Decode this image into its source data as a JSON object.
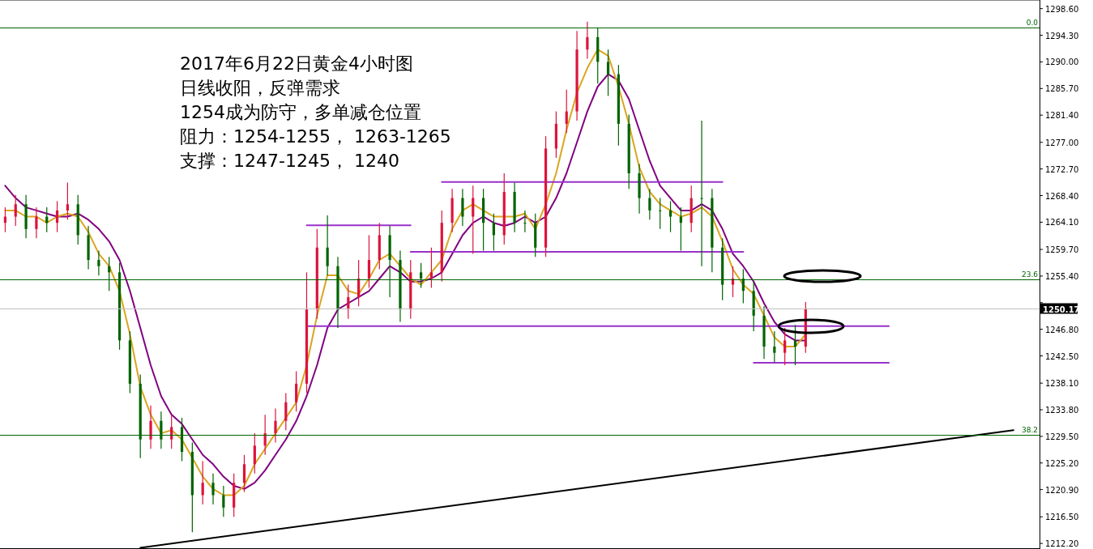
{
  "chart_data": {
    "type": "candlestick",
    "title": "2017年6月22日黄金4小时图",
    "annotations": [
      "日线收阳，反弹需求",
      "1254成为防守，多单减仓位置",
      "阻力：1254-1255， 1263-1265",
      "支撑：1247-1245， 1240",
      {
        "text": "0.0",
        "y": 1295.5
      },
      {
        "text": "23.6",
        "y": 1254.9
      },
      {
        "text": "38.2",
        "y": 1229.8
      }
    ],
    "categories": [
      null,
      null,
      null,
      null,
      null,
      null,
      null,
      null,
      null,
      null,
      null,
      null,
      null,
      null,
      null,
      null,
      null,
      null,
      null,
      null,
      null,
      null,
      null,
      null,
      null,
      null,
      null,
      null,
      null,
      null,
      null,
      null,
      null,
      null,
      null,
      null,
      null,
      null,
      null,
      null,
      null,
      null,
      null,
      null,
      null,
      null,
      null,
      null,
      null,
      null,
      null,
      null,
      null,
      null,
      null,
      null,
      null,
      null,
      null,
      null,
      null,
      null,
      null,
      null,
      null,
      null,
      null,
      null,
      null,
      null,
      null,
      null,
      null,
      null,
      null,
      null,
      null,
      null,
      null,
      null,
      null,
      null,
      null,
      null,
      null,
      null,
      null,
      null,
      null,
      null,
      null,
      null,
      null,
      null,
      null,
      null,
      null,
      null,
      null,
      null
    ],
    "ohlc": [
      [
        1264,
        1266.5,
        1262.5,
        1265
      ],
      [
        1265,
        1268.5,
        1263.5,
        1267
      ],
      [
        1267,
        1268.5,
        1261.5,
        1263
      ],
      [
        1263,
        1266.5,
        1261.5,
        1265
      ],
      [
        1265,
        1266.5,
        1262.5,
        1264
      ],
      [
        1264,
        1267.5,
        1262.5,
        1266
      ],
      [
        1266,
        1270.5,
        1264.5,
        1267
      ],
      [
        1267,
        1268.5,
        1260.5,
        1262
      ],
      [
        1262,
        1263.5,
        1256.5,
        1258
      ],
      [
        1258,
        1259.5,
        1255.5,
        1257
      ],
      [
        1257,
        1258.5,
        1253,
        1256
      ],
      [
        1256,
        1257.5,
        1243.5,
        1245
      ],
      [
        1245,
        1246.5,
        1236.5,
        1238
      ],
      [
        1238,
        1239.5,
        1226,
        1229
      ],
      [
        1229,
        1234.5,
        1227.5,
        1232
      ],
      [
        1232,
        1233.5,
        1227.5,
        1229
      ],
      [
        1229,
        1233,
        1227.5,
        1231
      ],
      [
        1231,
        1232.5,
        1225.5,
        1227
      ],
      [
        1227,
        1228.5,
        1214,
        1220
      ],
      [
        1220,
        1225.5,
        1218.5,
        1222
      ],
      [
        1222,
        1223.5,
        1218.5,
        1220
      ],
      [
        1220,
        1221.5,
        1216.5,
        1218
      ],
      [
        1218,
        1223.5,
        1216.5,
        1222
      ],
      [
        1222,
        1226.5,
        1220.5,
        1225
      ],
      [
        1225,
        1230,
        1223.5,
        1228
      ],
      [
        1228,
        1233,
        1226.5,
        1230
      ],
      [
        1230,
        1234,
        1228.5,
        1232
      ],
      [
        1232,
        1236.5,
        1230.5,
        1235
      ],
      [
        1235,
        1240,
        1233.5,
        1238
      ],
      [
        1238,
        1256,
        1236.5,
        1250
      ],
      [
        1250,
        1263,
        1248.5,
        1260
      ],
      [
        1260,
        1265.2,
        1255.5,
        1257
      ],
      [
        1257,
        1258.5,
        1247,
        1250
      ],
      [
        1250,
        1254,
        1248.5,
        1252
      ],
      [
        1252,
        1258,
        1250.5,
        1255
      ],
      [
        1255,
        1262,
        1253.5,
        1258
      ],
      [
        1258,
        1264,
        1256.5,
        1262
      ],
      [
        1262,
        1263.5,
        1252,
        1258
      ],
      [
        1258,
        1259.5,
        1248,
        1250
      ],
      [
        1250,
        1258,
        1248.5,
        1256
      ],
      [
        1256,
        1257.5,
        1253.5,
        1255
      ],
      [
        1255,
        1260,
        1253.5,
        1256
      ],
      [
        1256,
        1266,
        1254.5,
        1264
      ],
      [
        1264,
        1269.5,
        1262.5,
        1268
      ],
      [
        1268,
        1269.5,
        1263.5,
        1265
      ],
      [
        1265,
        1270,
        1259,
        1268
      ],
      [
        1268,
        1269.5,
        1259.5,
        1264
      ],
      [
        1264,
        1265.5,
        1259.5,
        1262
      ],
      [
        1262,
        1272,
        1260.5,
        1269
      ],
      [
        1269,
        1270.5,
        1262.5,
        1264
      ],
      [
        1264,
        1266,
        1262.5,
        1264
      ],
      [
        1264,
        1265.5,
        1258.5,
        1260
      ],
      [
        1260,
        1278,
        1258.5,
        1276
      ],
      [
        1276,
        1282,
        1274.5,
        1280
      ],
      [
        1280,
        1285.5,
        1278.5,
        1282
      ],
      [
        1282,
        1295,
        1280.5,
        1292
      ],
      [
        1292,
        1296.5,
        1290.5,
        1294
      ],
      [
        1294,
        1295.5,
        1286.5,
        1290
      ],
      [
        1290,
        1292,
        1284.5,
        1288
      ],
      [
        1288,
        1289.5,
        1276.5,
        1280
      ],
      [
        1280,
        1281.5,
        1269.5,
        1272
      ],
      [
        1272,
        1273.5,
        1265.5,
        1268
      ],
      [
        1268,
        1269.5,
        1264.5,
        1266
      ],
      [
        1266,
        1268,
        1263,
        1266
      ],
      [
        1266,
        1267.5,
        1262.5,
        1265
      ],
      [
        1265,
        1266.5,
        1259.5,
        1264
      ],
      [
        1264,
        1270,
        1262.5,
        1268
      ],
      [
        1268,
        1280.5,
        1257,
        1268
      ],
      [
        1268,
        1269.5,
        1256,
        1260
      ],
      [
        1260,
        1261.5,
        1251.5,
        1254
      ],
      [
        1254,
        1257,
        1252,
        1255
      ],
      [
        1255,
        1256.5,
        1251,
        1253
      ],
      [
        1253,
        1254.5,
        1246.5,
        1249
      ],
      [
        1249,
        1250.5,
        1242,
        1244
      ],
      [
        1244,
        1246.5,
        1241.5,
        1243
      ],
      [
        1243,
        1247,
        1241,
        1245
      ],
      [
        1245,
        1247.5,
        1241,
        1244
      ],
      [
        1244,
        1251.2,
        1243,
        1250.17
      ],
      null,
      null,
      null,
      null,
      null,
      null,
      null,
      null,
      null,
      null,
      null,
      null,
      null,
      null,
      null,
      null,
      null,
      null,
      null,
      null,
      null,
      null
    ],
    "colors": [
      "#dc143c",
      "#dc143c",
      "#006400",
      "#dc143c",
      "#006400",
      "#dc143c",
      "#dc143c",
      "#006400",
      "#006400",
      "#006400",
      "#006400",
      "#006400",
      "#006400",
      "#006400",
      "#dc143c",
      "#006400",
      "#dc143c",
      "#006400",
      "#006400",
      "#dc143c",
      "#006400",
      "#006400",
      "#dc143c",
      "#dc143c",
      "#dc143c",
      "#dc143c",
      "#dc143c",
      "#dc143c",
      "#dc143c",
      "#dc143c",
      "#dc143c",
      "#006400",
      "#006400",
      "#dc143c",
      "#dc143c",
      "#dc143c",
      "#dc143c",
      "#006400",
      "#006400",
      "#dc143c",
      "#006400",
      "#dc143c",
      "#dc143c",
      "#dc143c",
      "#006400",
      "#dc143c",
      "#006400",
      "#006400",
      "#dc143c",
      "#006400",
      "#006400",
      "#006400",
      "#dc143c",
      "#dc143c",
      "#dc143c",
      "#dc143c",
      "#dc143c",
      "#006400",
      "#006400",
      "#006400",
      "#006400",
      "#006400",
      "#006400",
      "#006400",
      "#006400",
      "#006400",
      "#dc143c",
      "#006400",
      "#006400",
      "#006400",
      "#dc143c",
      "#006400",
      "#006400",
      "#006400",
      "#006400",
      "#dc143c",
      "#006400",
      "#dc143c",
      null,
      null,
      null,
      null,
      null,
      null,
      null,
      null,
      null,
      null,
      null,
      null,
      null,
      null,
      null,
      null,
      null,
      null,
      null,
      null,
      null,
      null
    ],
    "series": [
      {
        "type": "line",
        "color": "#800080",
        "values": [
          1270,
          1268,
          1266.5,
          1266,
          1265.5,
          1265,
          1265,
          1265.5,
          1264.5,
          1263,
          1261,
          1258,
          1253,
          1247,
          1241,
          1236,
          1233,
          1231.5,
          1229,
          1226.5,
          1225,
          1223,
          1221.5,
          1221,
          1222,
          1224,
          1226.5,
          1229,
          1232,
          1236,
          1241,
          1247,
          1250,
          1251,
          1252,
          1253,
          1255,
          1257,
          1256,
          1254.5,
          1254.5,
          1255,
          1256,
          1259,
          1262,
          1264,
          1265,
          1264,
          1263.5,
          1264,
          1265,
          1264,
          1265,
          1268,
          1272,
          1277,
          1282,
          1286,
          1288,
          1287,
          1284,
          1279,
          1274,
          1270,
          1268,
          1266,
          1266,
          1267,
          1266,
          1263,
          1259,
          1257,
          1254.5,
          1251,
          1248,
          1246,
          1245,
          1245,
          null,
          null,
          null,
          null,
          null,
          null,
          null,
          null,
          null,
          null,
          null,
          null,
          null,
          null,
          null,
          null,
          null,
          null,
          null,
          null,
          null,
          null
        ]
      },
      {
        "type": "line",
        "color": "#daa520",
        "values": [
          1266,
          1266,
          1265,
          1265,
          1264,
          1265,
          1265.5,
          1265,
          1262.5,
          1259,
          1257,
          1253,
          1246,
          1237.5,
          1233,
          1230,
          1230.5,
          1229,
          1226,
          1223,
          1221,
          1220,
          1220,
          1221.5,
          1225,
          1227.5,
          1230,
          1232.5,
          1235,
          1241,
          1249,
          1255.5,
          1255.5,
          1253,
          1252.5,
          1255,
          1258,
          1259,
          1257,
          1255,
          1254,
          1256,
          1258,
          1263,
          1266,
          1267,
          1266,
          1265,
          1265,
          1265,
          1265.5,
          1263,
          1267,
          1272,
          1279,
          1285,
          1289,
          1292,
          1291,
          1286,
          1280,
          1273,
          1269,
          1267,
          1266,
          1265,
          1265.5,
          1266.5,
          1265,
          1261,
          1256.5,
          1254,
          1252.5,
          1249,
          1245.5,
          1244,
          1244,
          1246,
          null,
          null,
          null,
          null,
          null,
          null,
          null,
          null,
          null,
          null,
          null,
          null,
          null,
          null,
          null,
          null,
          null,
          null,
          null,
          null,
          null,
          null
        ]
      },
      {
        "type": "line",
        "color": "#000000",
        "values": [
          null,
          null,
          null,
          null,
          null,
          null,
          null,
          null,
          null,
          null,
          null,
          null,
          null,
          1211.5,
          null,
          null,
          null,
          null,
          null,
          null,
          null,
          null,
          null,
          null,
          null,
          null,
          null,
          null,
          null,
          null,
          null,
          null,
          null,
          null,
          null,
          null,
          null,
          null,
          null,
          null,
          null,
          null,
          null,
          null,
          null,
          null,
          null,
          null,
          null,
          null,
          null,
          null,
          null,
          null,
          null,
          null,
          null,
          null,
          null,
          null,
          null,
          null,
          null,
          null,
          null,
          null,
          null,
          null,
          null,
          null,
          null,
          null,
          null,
          null,
          null,
          null,
          null,
          null,
          null,
          null,
          null,
          null,
          null,
          null,
          null,
          null,
          null,
          null,
          null,
          null,
          null,
          null,
          null,
          null,
          null,
          null,
          null,
          1230.5,
          null,
          null
        ]
      },
      {
        "type": "line",
        "color": "#9932cc",
        "values": [
          null,
          null,
          null,
          null,
          null,
          null,
          null,
          null,
          null,
          null,
          null,
          null,
          null,
          null,
          null,
          null,
          null,
          null,
          null,
          null,
          null,
          null,
          null,
          null,
          null,
          null,
          null,
          null,
          null,
          1263.6,
          null,
          null,
          null,
          null,
          null,
          null,
          null,
          null,
          null,
          1263.6,
          null,
          null,
          null,
          null,
          null,
          null,
          null,
          null,
          null,
          null,
          null,
          null,
          null,
          null,
          null,
          null,
          null,
          null,
          null,
          null,
          null,
          null,
          null,
          null,
          null,
          null,
          null,
          null,
          null,
          null,
          null,
          null,
          null,
          null,
          null,
          null,
          null,
          null,
          null,
          null,
          null,
          null,
          null,
          null,
          null,
          null,
          null,
          null,
          null,
          null,
          null,
          null,
          null,
          null,
          null,
          null,
          null,
          null,
          null,
          null
        ]
      },
      {
        "type": "line",
        "color": "#9932cc",
        "values": [
          null,
          null,
          null,
          null,
          null,
          null,
          null,
          null,
          null,
          null,
          null,
          null,
          null,
          null,
          null,
          null,
          null,
          null,
          null,
          null,
          null,
          null,
          null,
          null,
          null,
          null,
          null,
          null,
          null,
          null,
          null,
          null,
          null,
          null,
          null,
          null,
          null,
          null,
          null,
          1259.3,
          null,
          null,
          null,
          null,
          null,
          null,
          null,
          null,
          null,
          null,
          null,
          null,
          null,
          null,
          null,
          null,
          null,
          null,
          null,
          null,
          null,
          null,
          null,
          null,
          null,
          null,
          null,
          null,
          null,
          null,
          null,
          1259.3,
          null,
          null,
          null,
          null,
          null,
          null,
          null,
          null,
          null,
          null,
          null,
          null,
          null,
          null,
          null,
          null,
          null,
          null,
          null,
          null,
          null,
          null,
          null,
          null,
          null,
          null,
          null,
          null
        ]
      },
      {
        "type": "line",
        "color": "#9932cc",
        "values": [
          null,
          null,
          null,
          null,
          null,
          null,
          null,
          null,
          null,
          null,
          null,
          null,
          null,
          null,
          null,
          null,
          null,
          null,
          null,
          null,
          null,
          null,
          null,
          null,
          null,
          null,
          null,
          null,
          null,
          null,
          null,
          null,
          null,
          null,
          null,
          null,
          null,
          null,
          null,
          null,
          null,
          null,
          1270.6,
          null,
          null,
          null,
          null,
          null,
          null,
          null,
          null,
          null,
          null,
          null,
          null,
          null,
          null,
          null,
          null,
          null,
          null,
          null,
          null,
          null,
          null,
          null,
          null,
          null,
          null,
          1270.6,
          null,
          null,
          null,
          null,
          null,
          null,
          null,
          null,
          null,
          null,
          null,
          null,
          null,
          null,
          null,
          null,
          null,
          null,
          null,
          null,
          null,
          null,
          null,
          null,
          null,
          null,
          null,
          null,
          null,
          null
        ]
      },
      {
        "type": "line",
        "color": "#9932cc",
        "values": [
          null,
          null,
          null,
          null,
          null,
          null,
          null,
          null,
          null,
          null,
          null,
          null,
          null,
          null,
          null,
          null,
          null,
          null,
          null,
          null,
          null,
          null,
          null,
          null,
          null,
          null,
          null,
          null,
          null,
          1247.3,
          null,
          null,
          null,
          null,
          null,
          null,
          null,
          null,
          null,
          null,
          null,
          null,
          null,
          null,
          null,
          null,
          null,
          null,
          null,
          null,
          null,
          null,
          null,
          null,
          null,
          null,
          null,
          null,
          null,
          null,
          null,
          null,
          null,
          null,
          null,
          null,
          null,
          null,
          null,
          null,
          null,
          null,
          null,
          null,
          null,
          null,
          null,
          null,
          null,
          null,
          null,
          null,
          null,
          null,
          null,
          1247.3,
          null,
          null,
          null,
          null,
          null,
          null,
          null,
          null,
          null,
          null,
          null,
          null,
          null,
          null
        ]
      },
      {
        "type": "line",
        "color": "#9932cc",
        "values": [
          null,
          null,
          null,
          null,
          null,
          null,
          null,
          null,
          null,
          null,
          null,
          null,
          null,
          null,
          null,
          null,
          null,
          null,
          null,
          null,
          null,
          null,
          null,
          null,
          null,
          null,
          null,
          null,
          null,
          null,
          null,
          null,
          null,
          null,
          null,
          null,
          null,
          null,
          null,
          null,
          null,
          null,
          null,
          null,
          null,
          null,
          null,
          null,
          null,
          null,
          null,
          null,
          null,
          null,
          null,
          null,
          null,
          null,
          null,
          null,
          null,
          null,
          null,
          null,
          null,
          null,
          null,
          null,
          null,
          null,
          null,
          null,
          1241.4,
          null,
          null,
          null,
          null,
          null,
          null,
          null,
          null,
          null,
          null,
          null,
          null,
          1241.4,
          null,
          null,
          null,
          null,
          null,
          null,
          null,
          null,
          null,
          null,
          null,
          null,
          null,
          null
        ]
      }
    ],
    "ylim": [
      1211.3,
      1300.0
    ],
    "yticks": [
      {
        "value": 1212.2,
        "label": "1212.20"
      },
      {
        "value": 1216.5,
        "label": "1216.50"
      },
      {
        "value": 1220.9,
        "label": "1220.90"
      },
      {
        "value": 1225.2,
        "label": "1225.20"
      },
      {
        "value": 1229.5,
        "label": "1229.50"
      },
      {
        "value": 1233.8,
        "label": "1233.80"
      },
      {
        "value": 1238.1,
        "label": "1238.10"
      },
      {
        "value": 1242.5,
        "label": "1242.50"
      },
      {
        "value": 1246.8,
        "label": "1246.80"
      },
      {
        "value": 1251.1,
        "label": null
      },
      {
        "value": 1255.4,
        "label": "1255.40"
      },
      {
        "value": 1259.7,
        "label": "1259.70"
      },
      {
        "value": 1264.1,
        "label": "1264.10"
      },
      {
        "value": 1268.4,
        "label": "1268.40"
      },
      {
        "value": 1272.7,
        "label": "1272.70"
      },
      {
        "value": 1277.0,
        "label": "1277.00"
      },
      {
        "value": 1281.4,
        "label": "1281.40"
      },
      {
        "value": 1285.7,
        "label": "1285.70"
      },
      {
        "value": 1290.0,
        "label": "1290.00"
      },
      {
        "value": 1294.3,
        "label": "1294.30"
      },
      {
        "value": 1298.6,
        "label": "1298.60"
      }
    ],
    "ref_lines": [
      {
        "axis": "y",
        "value": 1295.5,
        "color": "#006400"
      },
      {
        "axis": "y",
        "value": 1254.9,
        "color": "#006400"
      },
      {
        "axis": "y",
        "value": 1229.8,
        "color": "#006400"
      },
      {
        "axis": "y",
        "value": 1250.17,
        "label": "1250.17",
        "color": "#c0c0c0"
      }
    ],
    "tick_labels": "y",
    "grid": false
  }
}
